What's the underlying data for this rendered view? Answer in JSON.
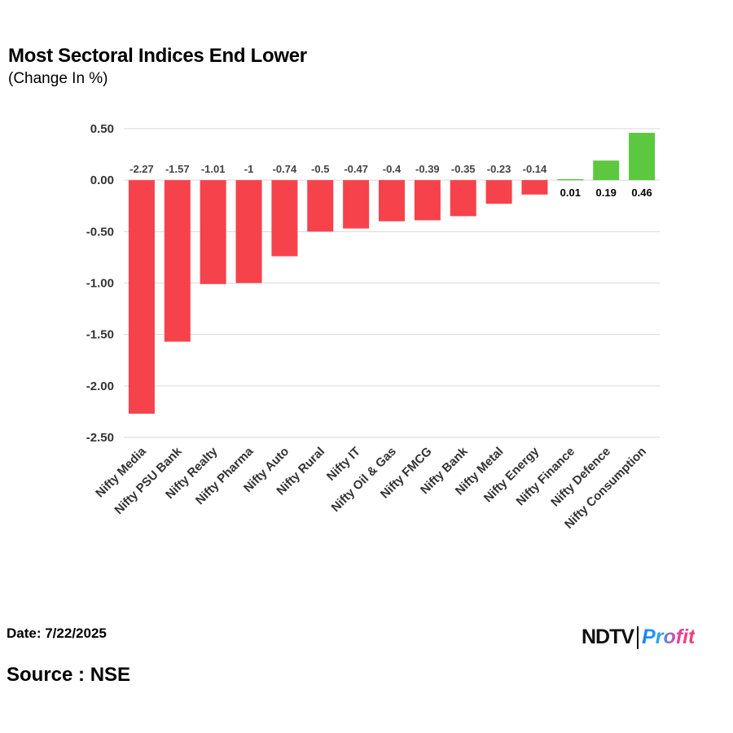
{
  "header": {
    "title": "Most Sectoral Indices End Lower",
    "subtitle": "(Change In %)"
  },
  "footer": {
    "date": "Date: 7/22/2025",
    "source": "Source : NSE",
    "logo_text": "NDTV Profit"
  },
  "chart_data": {
    "type": "bar",
    "title": "Most Sectoral Indices End Lower",
    "subtitle": "(Change In %)",
    "categories": [
      "Nifty Media",
      "Nifty PSU Bank",
      "Nifty Realty",
      "Nifty Pharma",
      "Nifty Auto",
      "Nifty Rural",
      "Nifty IT",
      "Nifty Oil & Gas",
      "Nifty FMCG",
      "Nifty Bank",
      "Nifty Metal",
      "Nifty Energy",
      "Nifty Finance",
      "Nifty Defence",
      "Nifty Consumption"
    ],
    "values": [
      -2.27,
      -1.57,
      -1.01,
      -1,
      -0.74,
      -0.5,
      -0.47,
      -0.4,
      -0.39,
      -0.35,
      -0.23,
      -0.14,
      0.01,
      0.19,
      0.46
    ],
    "data_labels": [
      "-2.27",
      "-1.57",
      "-1.01",
      "-1",
      "-0.74",
      "-0.5",
      "-0.47",
      "-0.4",
      "-0.39",
      "-0.35",
      "-0.23",
      "-0.14",
      "0.01",
      "0.19",
      "0.46"
    ],
    "ylim": [
      -2.5,
      0.5
    ],
    "yticks": [
      "0.50",
      "0.00",
      "-0.50",
      "-1.00",
      "-1.50",
      "-2.00",
      "-2.50"
    ],
    "grid": true,
    "colors": {
      "negative": "#f5424b",
      "positive": "#5cc83f"
    }
  }
}
